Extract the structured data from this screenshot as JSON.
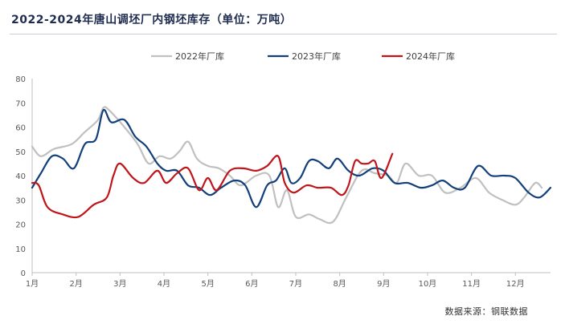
{
  "chart_data": {
    "type": "line",
    "title": "2022-2024年唐山调坯厂内钢坯库存（单位：万吨）",
    "source": "数据来源：钢联数据",
    "ylim": [
      0,
      80
    ],
    "yticks": [
      0,
      10,
      20,
      30,
      40,
      50,
      60,
      70,
      80
    ],
    "x_label_unit": "month",
    "x_ticks": [
      "1月",
      "2月",
      "3月",
      "4月",
      "5月",
      "6月",
      "7月",
      "8月",
      "9月",
      "10月",
      "11月",
      "12月"
    ],
    "xlim": [
      1,
      12.8
    ],
    "grid": false,
    "legend_position": "top",
    "series": [
      {
        "name": "2022年厂库",
        "color": "#c0c0c0",
        "x": [
          1.0,
          1.2,
          1.5,
          1.9,
          2.2,
          2.5,
          2.62,
          2.75,
          3.1,
          3.4,
          3.65,
          3.9,
          4.15,
          4.35,
          4.55,
          4.75,
          5.0,
          5.25,
          5.5,
          5.75,
          6.1,
          6.4,
          6.6,
          6.8,
          7.0,
          7.3,
          7.55,
          7.85,
          8.15,
          8.5,
          8.8,
          9.1,
          9.3,
          9.5,
          9.8,
          10.1,
          10.4,
          10.75,
          11.1,
          11.4,
          11.7,
          12.0,
          12.2,
          12.45,
          12.6
        ],
        "values": [
          52,
          48,
          51,
          53,
          58,
          63,
          68,
          67,
          60,
          53,
          45,
          48,
          47,
          50,
          54,
          47,
          44,
          43,
          40,
          36,
          40,
          40,
          27,
          34,
          23,
          24,
          22,
          21,
          31,
          42,
          41,
          40,
          37,
          45,
          40,
          40,
          33,
          35,
          39,
          33,
          30,
          28,
          31,
          37,
          35
        ]
      },
      {
        "name": "2023年厂库",
        "color": "#123f7a",
        "x": [
          1.0,
          1.2,
          1.45,
          1.7,
          1.95,
          2.2,
          2.45,
          2.62,
          2.8,
          3.1,
          3.35,
          3.6,
          3.85,
          4.05,
          4.3,
          4.55,
          4.8,
          5.05,
          5.3,
          5.6,
          5.85,
          6.1,
          6.35,
          6.55,
          6.75,
          6.9,
          7.1,
          7.3,
          7.5,
          7.75,
          7.95,
          8.2,
          8.45,
          8.75,
          9.0,
          9.25,
          9.55,
          9.85,
          10.1,
          10.35,
          10.6,
          10.85,
          11.15,
          11.45,
          11.75,
          12.0,
          12.3,
          12.55,
          12.8
        ],
        "values": [
          35,
          41,
          48,
          47,
          43,
          53,
          55,
          67,
          62,
          63,
          56,
          52,
          45,
          42,
          42,
          36,
          35,
          32,
          35,
          38,
          36,
          27,
          36,
          38,
          43,
          37,
          39,
          46,
          46,
          43,
          47,
          42,
          40,
          43,
          42,
          37,
          37,
          35,
          36,
          38,
          35,
          35,
          44,
          40,
          40,
          39,
          33,
          31,
          35
        ]
      },
      {
        "name": "2024年厂库",
        "color": "#c0141b",
        "x": [
          1.0,
          1.15,
          1.35,
          1.7,
          2.05,
          2.4,
          2.7,
          2.85,
          3.0,
          3.3,
          3.55,
          3.85,
          4.05,
          4.3,
          4.55,
          4.8,
          5.0,
          5.2,
          5.5,
          5.8,
          6.1,
          6.35,
          6.6,
          6.75,
          6.95,
          7.25,
          7.5,
          7.8,
          8.05,
          8.2,
          8.35,
          8.5,
          8.65,
          8.8,
          8.95,
          9.2
        ],
        "values": [
          37,
          36,
          27,
          24,
          23,
          28,
          31,
          40,
          45,
          39,
          37,
          42,
          37,
          41,
          43,
          34,
          39,
          34,
          42,
          43,
          42,
          44,
          48,
          37,
          33,
          36,
          35,
          35,
          32,
          36,
          46,
          45,
          45,
          46,
          39,
          49
        ]
      }
    ]
  }
}
